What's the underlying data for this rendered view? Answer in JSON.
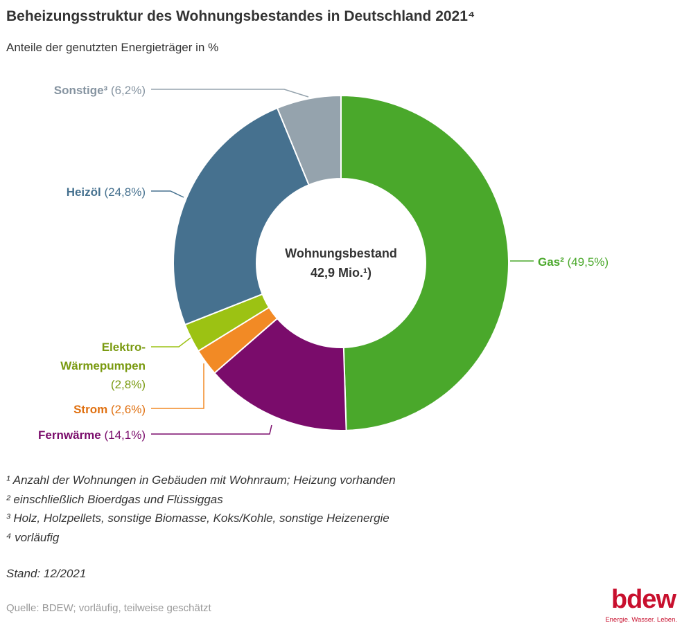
{
  "title": "Beheizungsstruktur des Wohnungsbestandes in Deutschland 2021⁴",
  "subtitle": "Anteile der genutzten Energieträger in %",
  "center_label": {
    "line1": "Wohnungsbestand",
    "line2": "42,9 Mio.¹)"
  },
  "chart_data": {
    "type": "pie",
    "subtype": "donut",
    "unit": "%",
    "slices": [
      {
        "name": "Gas²",
        "value": 49.5,
        "value_label": "(49,5%)",
        "color": "#4aa82b"
      },
      {
        "name": "Fernwärme",
        "value": 14.1,
        "value_label": "(14,1%)",
        "color": "#7a0c6b"
      },
      {
        "name": "Strom",
        "value": 2.6,
        "value_label": "(2,6%)",
        "color": "#f28a25"
      },
      {
        "name": "Elektro-Wärmepumpen",
        "value": 2.8,
        "value_label": "(2,8%)",
        "color": "#9cc213",
        "label_lines": [
          "Elektro-",
          "Wärmepumpen"
        ]
      },
      {
        "name": "Heizöl",
        "value": 24.8,
        "value_label": "(24,8%)",
        "color": "#46718f"
      },
      {
        "name": "Sonstige³",
        "value": 6.2,
        "value_label": "(6,2%)",
        "color": "#95a3ad"
      }
    ],
    "label_colors": {
      "Gas²": "#4aa82b",
      "Fernwärme": "#7a0c6b",
      "Strom": "#e07010",
      "Elektro-Wärmepumpen": "#7a9a10",
      "Heizöl": "#46718f",
      "Sonstige³": "#8593a0"
    }
  },
  "footnotes": [
    "¹ Anzahl der Wohnungen in Gebäuden mit Wohnraum; Heizung vorhanden",
    "² einschließlich Bioerdgas und Flüssiggas",
    "³ Holz, Holzpellets, sonstige Biomasse, Koks/Kohle, sonstige Heizenergie",
    "⁴ vorläufig"
  ],
  "stand": "Stand: 12/2021",
  "source": "Quelle: BDEW; vorläufig, teilweise geschätzt",
  "logo": {
    "word": "bdew",
    "tagline": "Energie. Wasser. Leben."
  }
}
